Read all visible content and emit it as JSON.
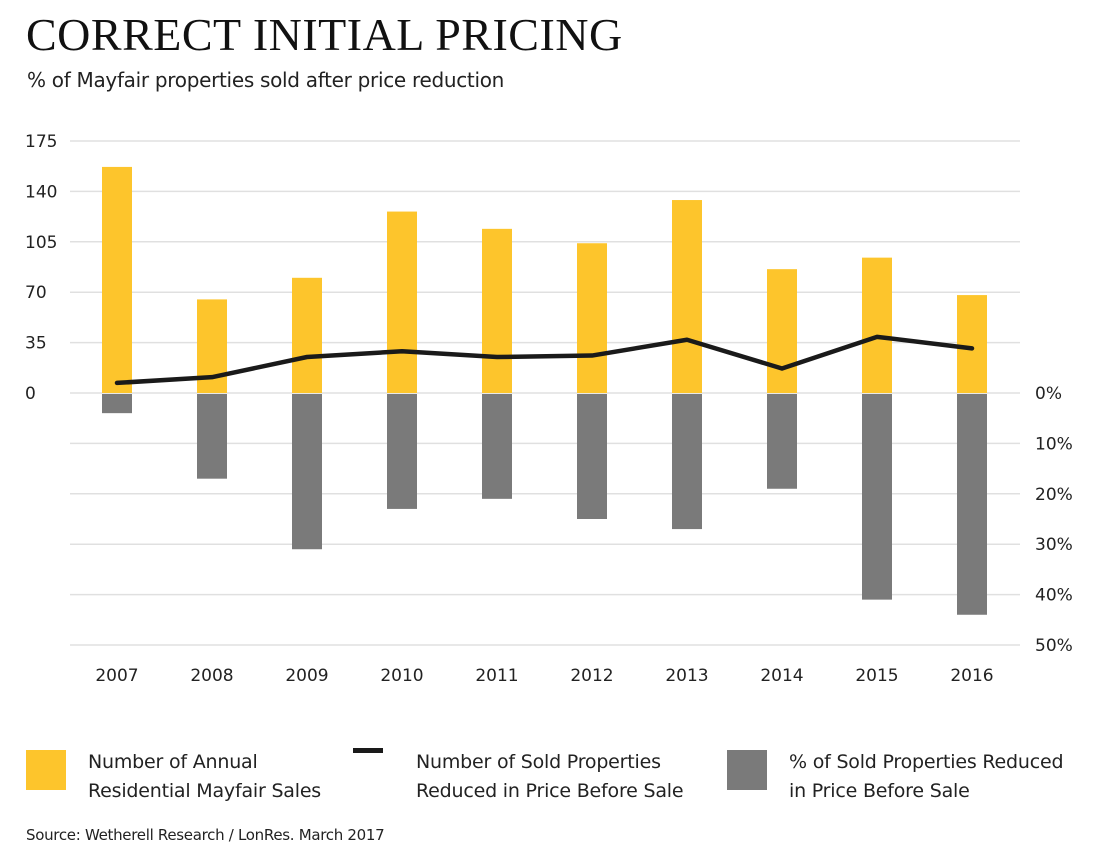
{
  "header": {
    "title": "CORRECT INITIAL PRICING",
    "subtitle": "% of Mayfair properties sold after price reduction"
  },
  "colors": {
    "sales_bar": "#fdc52c",
    "reduced_pct_bar": "#7a7a7a",
    "reduced_count_line": "#1a1a1a",
    "gridline": "#e0e0e0"
  },
  "chart_data": {
    "type": "bar",
    "title": "CORRECT INITIAL PRICING",
    "subtitle": "% of Mayfair properties sold after price reduction",
    "categories": [
      "2007",
      "2008",
      "2009",
      "2010",
      "2011",
      "2012",
      "2013",
      "2014",
      "2015",
      "2016"
    ],
    "left_axis": {
      "label": "",
      "ticks": [
        "175",
        "140",
        "105",
        "70",
        "35",
        "0"
      ],
      "tick_values": [
        175,
        140,
        105,
        70,
        35,
        0
      ],
      "ylim": [
        0,
        175
      ]
    },
    "right_axis": {
      "label": "",
      "ticks": [
        "0%",
        "10%",
        "20%",
        "30%",
        "40%",
        "50%"
      ],
      "tick_values": [
        0,
        10,
        20,
        30,
        40,
        50
      ],
      "ylim": [
        0,
        50
      ],
      "direction": "downward"
    },
    "grid": true,
    "legend_position": "bottom",
    "series": [
      {
        "name": "Number of Annual Residential Mayfair Sales",
        "type": "bar",
        "axis": "left",
        "values": [
          157,
          65,
          80,
          126,
          114,
          104,
          134,
          86,
          94,
          68
        ]
      },
      {
        "name": "Number of Sold Properties Reduced in Price Before Sale",
        "type": "line",
        "axis": "left",
        "values": [
          7,
          11,
          25,
          29,
          25,
          26,
          37,
          17,
          39,
          31
        ]
      },
      {
        "name": "% of Sold Properties Reduced in Price Before Sale",
        "type": "bar",
        "axis": "right",
        "values": [
          4,
          17,
          31,
          23,
          21,
          25,
          27,
          19,
          41,
          44
        ]
      }
    ]
  },
  "legend": [
    {
      "label_line1": "Number of Annual",
      "label_line2": "Residential Mayfair Sales",
      "icon": "yellow-square"
    },
    {
      "label_line1": "Number of Sold Properties",
      "label_line2": "Reduced in Price Before Sale",
      "icon": "black-line"
    },
    {
      "label_line1": "% of Sold Properties Reduced",
      "label_line2": "in Price Before Sale",
      "icon": "gray-square"
    }
  ],
  "source": "Source: Wetherell Research / LonRes. March 2017"
}
